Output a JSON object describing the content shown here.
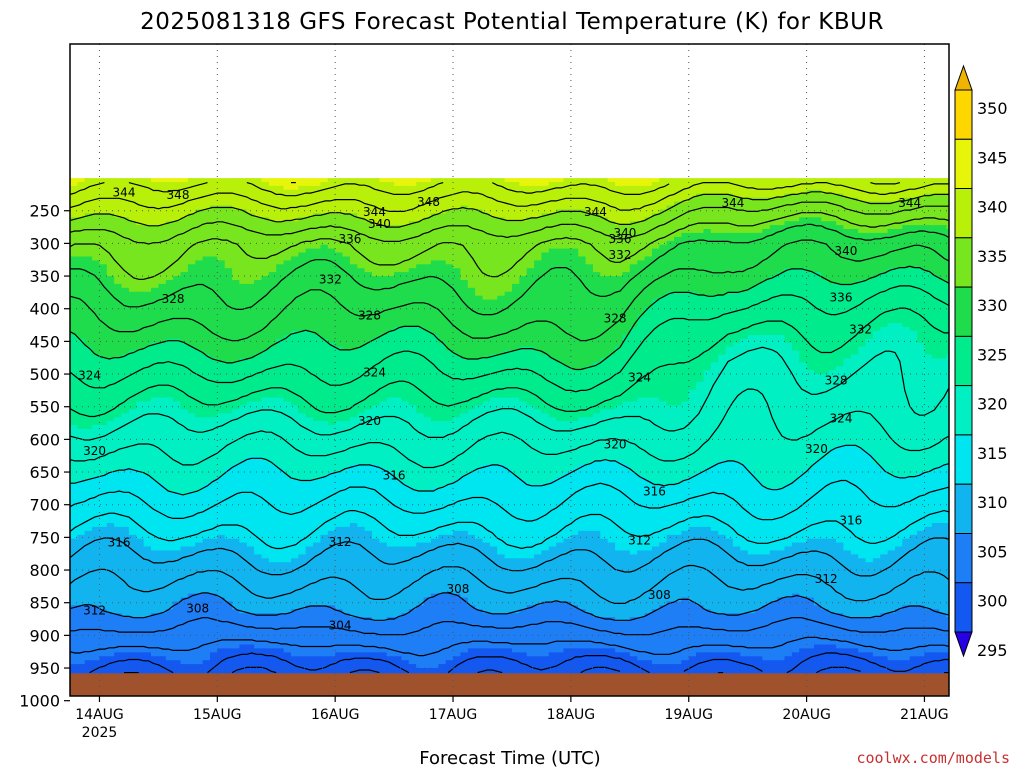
{
  "title": "2025081318 GFS Forecast Potential Temperature (K) for KBUR",
  "credit": "coolwx.com/models",
  "chart_data": {
    "type": "contour",
    "title": "2025081318 GFS Forecast Potential Temperature (K) for KBUR",
    "xlabel": "Forecast Time (UTC)",
    "ylabel": "",
    "x_ticks": [
      {
        "label": "14AUG",
        "sub": "2025",
        "hours": 6
      },
      {
        "label": "15AUG",
        "sub": "",
        "hours": 30
      },
      {
        "label": "16AUG",
        "sub": "",
        "hours": 54
      },
      {
        "label": "17AUG",
        "sub": "",
        "hours": 78
      },
      {
        "label": "18AUG",
        "sub": "",
        "hours": 102
      },
      {
        "label": "19AUG",
        "sub": "",
        "hours": 126
      },
      {
        "label": "20AUG",
        "sub": "",
        "hours": 150
      },
      {
        "label": "21AUG",
        "sub": "",
        "hours": 174
      }
    ],
    "y_ticks": [
      250,
      300,
      350,
      400,
      450,
      500,
      550,
      600,
      650,
      700,
      750,
      800,
      850,
      900,
      950,
      1000
    ],
    "ylim": [
      200,
      1000
    ],
    "surface_pressure_hPa": 958,
    "colorbar_levels": [
      295,
      300,
      305,
      310,
      315,
      320,
      325,
      330,
      335,
      340,
      345,
      350
    ],
    "colors": [
      "#2800e6",
      "#0a2ff0",
      "#1358f0",
      "#1e7ef5",
      "#12b4f0",
      "#00e6f0",
      "#00f0c3",
      "#00eb8c",
      "#1edc4b",
      "#78e61e",
      "#b9f00a",
      "#e6f50a",
      "#ffd700",
      "#f0b400"
    ],
    "ground_color": "#a0522d",
    "contour_labels": [
      {
        "text": "344",
        "h": 11,
        "p": 222
      },
      {
        "text": "348",
        "h": 22,
        "p": 226
      },
      {
        "text": "348",
        "h": 73,
        "p": 237
      },
      {
        "text": "344",
        "h": 62,
        "p": 252
      },
      {
        "text": "344",
        "h": 107,
        "p": 252
      },
      {
        "text": "344",
        "h": 135,
        "p": 238
      },
      {
        "text": "344",
        "h": 171,
        "p": 238
      },
      {
        "text": "340",
        "h": 63,
        "p": 270
      },
      {
        "text": "340",
        "h": 113,
        "p": 284
      },
      {
        "text": "340",
        "h": 158,
        "p": 312
      },
      {
        "text": "336",
        "h": 57,
        "p": 293
      },
      {
        "text": "336",
        "h": 112,
        "p": 293
      },
      {
        "text": "336",
        "h": 157,
        "p": 383
      },
      {
        "text": "332",
        "h": 112,
        "p": 318
      },
      {
        "text": "332",
        "h": 53,
        "p": 355
      },
      {
        "text": "332",
        "h": 161,
        "p": 432
      },
      {
        "text": "328",
        "h": 21,
        "p": 385
      },
      {
        "text": "328",
        "h": 61,
        "p": 410
      },
      {
        "text": "328",
        "h": 111,
        "p": 415
      },
      {
        "text": "328",
        "h": 156,
        "p": 510
      },
      {
        "text": "324",
        "h": 4,
        "p": 502
      },
      {
        "text": "324",
        "h": 62,
        "p": 498
      },
      {
        "text": "324",
        "h": 116,
        "p": 505
      },
      {
        "text": "324",
        "h": 157,
        "p": 568
      },
      {
        "text": "320",
        "h": 61,
        "p": 572
      },
      {
        "text": "320",
        "h": 5,
        "p": 618
      },
      {
        "text": "320",
        "h": 111,
        "p": 608
      },
      {
        "text": "320",
        "h": 152,
        "p": 615
      },
      {
        "text": "316",
        "h": 66,
        "p": 655
      },
      {
        "text": "316",
        "h": 119,
        "p": 680
      },
      {
        "text": "316",
        "h": 159,
        "p": 724
      },
      {
        "text": "316",
        "h": 10,
        "p": 758
      },
      {
        "text": "312",
        "h": 55,
        "p": 757
      },
      {
        "text": "312",
        "h": 116,
        "p": 755
      },
      {
        "text": "312",
        "h": 154,
        "p": 814
      },
      {
        "text": "312",
        "h": 5,
        "p": 862
      },
      {
        "text": "308",
        "h": 26,
        "p": 859
      },
      {
        "text": "308",
        "h": 79,
        "p": 829
      },
      {
        "text": "308",
        "h": 120,
        "p": 838
      },
      {
        "text": "304",
        "h": 55,
        "p": 885
      }
    ]
  }
}
